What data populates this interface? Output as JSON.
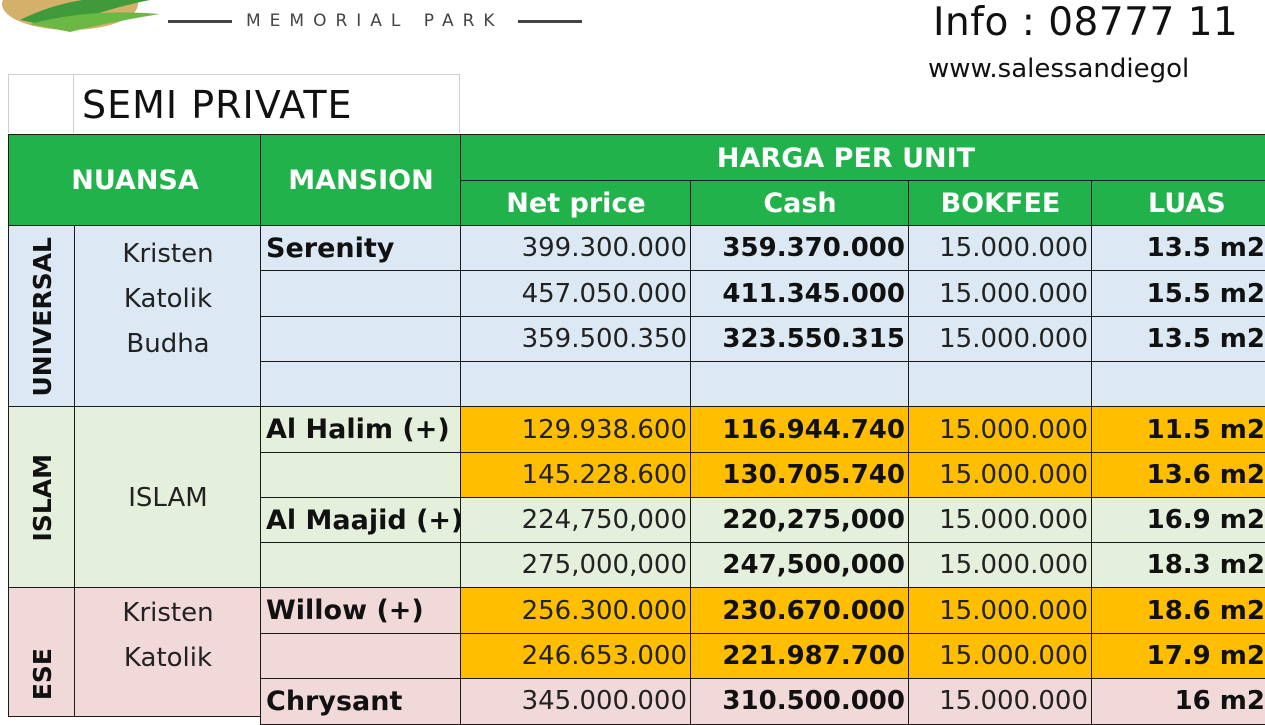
{
  "header": {
    "brand_sub": "MEMORIAL  PARK",
    "info": "Info : 08777 11",
    "website": "www.salessandiegol"
  },
  "table_title": "SEMI PRIVATE",
  "columns": {
    "nuansa": "NUANSA",
    "mansion": "MANSION",
    "group": "HARGA PER UNIT",
    "net_price": "Net price",
    "cash": "Cash",
    "bokfee": "BOKFEE",
    "luas": "LUAS"
  },
  "groups": {
    "universal": {
      "label": "UNIVERSAL",
      "religions": [
        "Kristen",
        "Katolik",
        "Budha"
      ]
    },
    "islam": {
      "label": "ISLAM",
      "religions": [
        "ISLAM"
      ]
    },
    "chinese": {
      "label": "ESE",
      "religions": [
        "Kristen",
        "Katolik"
      ]
    }
  },
  "rows": [
    {
      "mansion": "Serenity",
      "net": "399.300.000",
      "cash": "359.370.000",
      "bokfee": "15.000.000",
      "luas": "13.5 m2"
    },
    {
      "mansion": "",
      "net": "457.050.000",
      "cash": "411.345.000",
      "bokfee": "15.000.000",
      "luas": "15.5 m2"
    },
    {
      "mansion": "",
      "net": "359.500.350",
      "cash": "323.550.315",
      "bokfee": "15.000.000",
      "luas": "13.5 m2"
    },
    {
      "mansion": "",
      "net": "",
      "cash": "",
      "bokfee": "",
      "luas": ""
    },
    {
      "mansion": "Al Halim (+)",
      "net": "129.938.600",
      "cash": "116.944.740",
      "bokfee": "15.000.000",
      "luas": "11.5 m2"
    },
    {
      "mansion": "",
      "net": "145.228.600",
      "cash": "130.705.740",
      "bokfee": "15.000.000",
      "luas": "13.6 m2"
    },
    {
      "mansion": "Al Maajid (+)",
      "net": "224,750,000",
      "cash": "220,275,000",
      "bokfee": "15.000.000",
      "luas": "16.9 m2"
    },
    {
      "mansion": "",
      "net": "275,000,000",
      "cash": "247,500,000",
      "bokfee": "15.000.000",
      "luas": "18.3 m2"
    },
    {
      "mansion": "Willow (+)",
      "net": "256.300.000",
      "cash": "230.670.000",
      "bokfee": "15.000.000",
      "luas": "18.6 m2"
    },
    {
      "mansion": "",
      "net": "246.653.000",
      "cash": "221.987.700",
      "bokfee": "15.000.000",
      "luas": "17.9 m2"
    },
    {
      "mansion": "Chrysant",
      "net": "345.000.000",
      "cash": "310.500.000",
      "bokfee": "15.000.000",
      "luas": "16 m2"
    }
  ],
  "colors": {
    "header_green": "#21b24b",
    "universal_blue": "#dce9f4",
    "islam_green": "#e4efdc",
    "highlight_orange": "#ffbf00",
    "chinese_pink": "#f2d9d9"
  }
}
